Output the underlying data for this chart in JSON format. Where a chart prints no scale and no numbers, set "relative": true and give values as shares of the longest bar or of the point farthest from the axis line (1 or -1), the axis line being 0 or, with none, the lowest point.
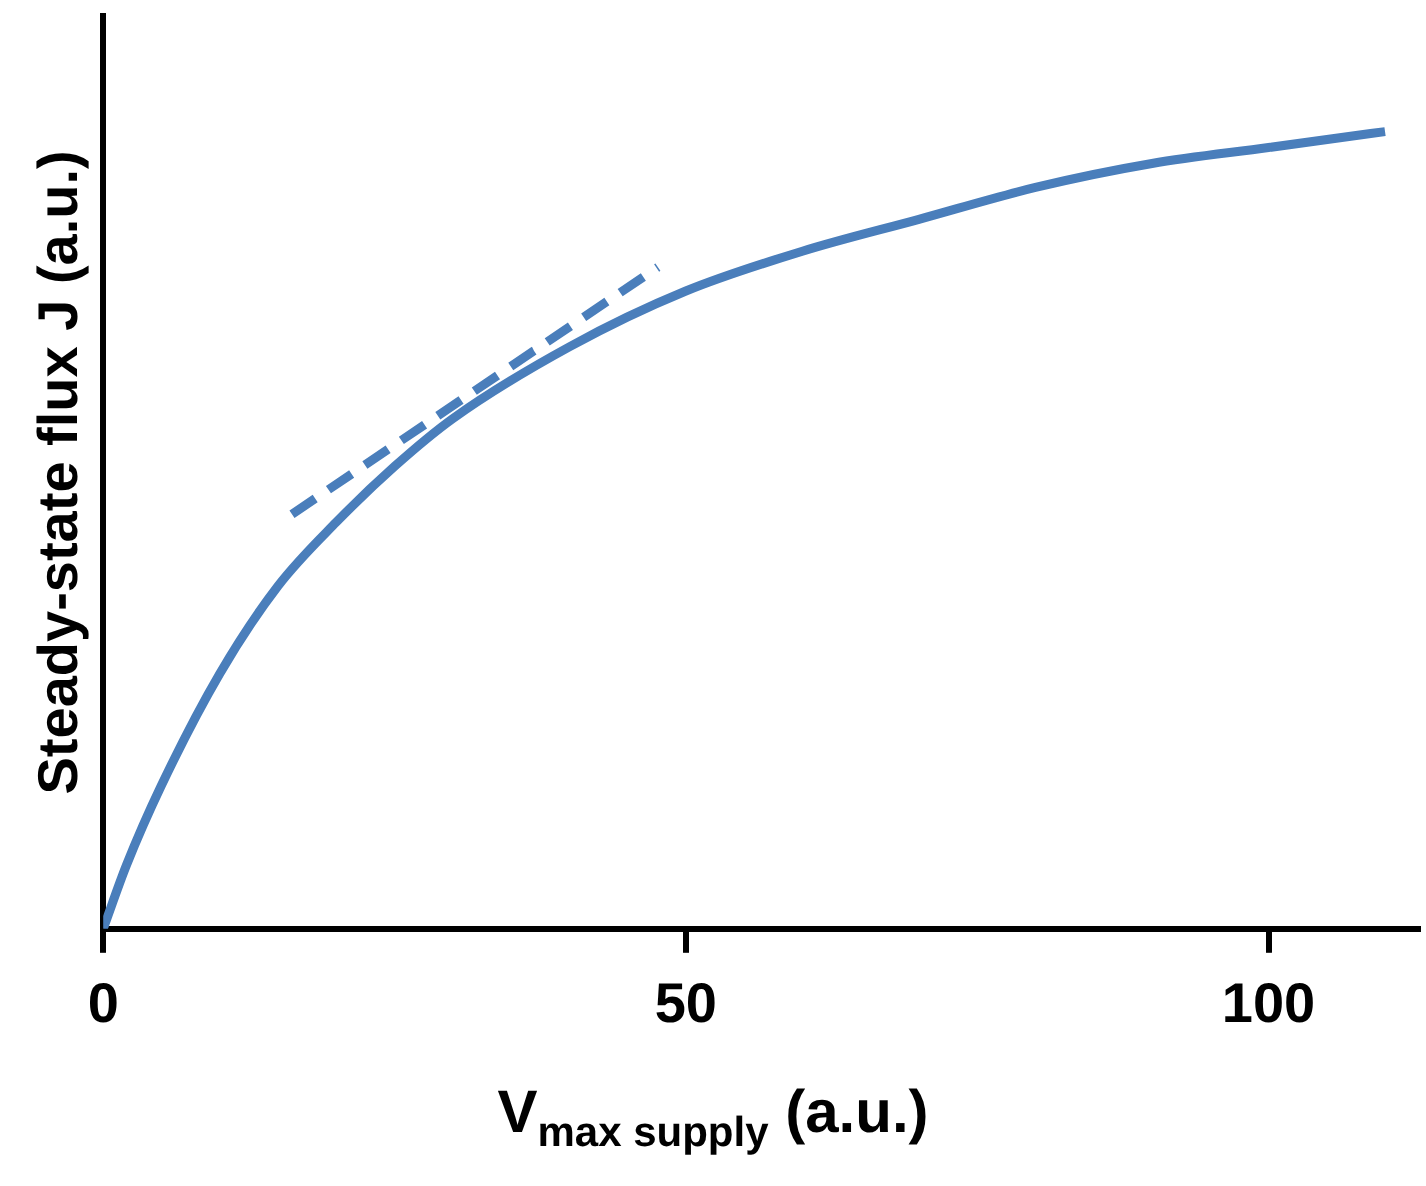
{
  "chart_data": {
    "type": "line",
    "xlabel": "V$_{max supply}$ (a.u.)",
    "ylabel": "Steady-state flux J (a.u.)",
    "relative": true,
    "xlim": [
      0,
      113
    ],
    "xticks": [
      0,
      50,
      100
    ],
    "grid": false,
    "legend": false,
    "marker": "none",
    "series": [
      {
        "color": "#4a7ebb",
        "line_style": "solid",
        "x": [
          0,
          2,
          5,
          10,
          15,
          20,
          25,
          30,
          40,
          50,
          60,
          70,
          80,
          90,
          100,
          110
        ],
        "values": [
          0,
          0.08,
          0.18,
          0.32,
          0.43,
          0.51,
          0.58,
          0.64,
          0.73,
          0.8,
          0.85,
          0.89,
          0.93,
          0.96,
          0.98,
          1
        ]
      },
      {
        "type": "line",
        "color": "#4a7ebb",
        "line_style": "dashed",
        "x": [
          16.2,
          47.6
        ],
        "values": [
          0.52,
          0.83
        ]
      }
    ]
  }
}
